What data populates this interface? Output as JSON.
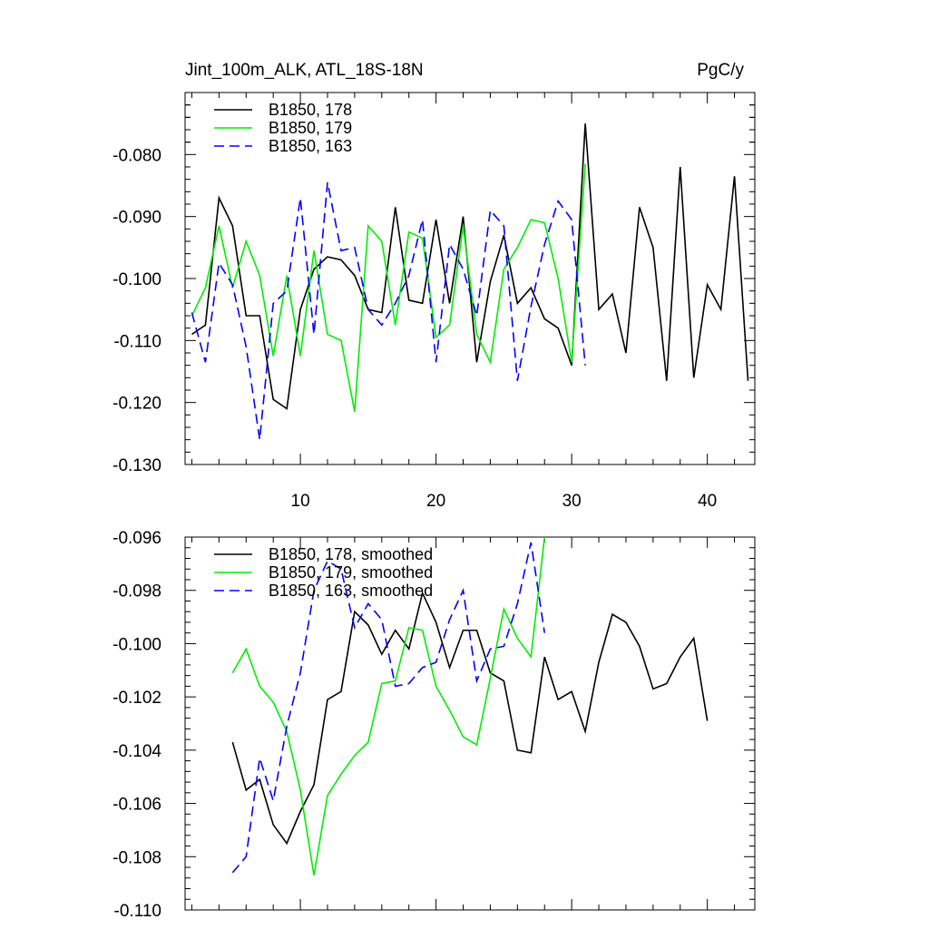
{
  "chart_data": [
    {
      "type": "line",
      "title": "Jint_100m_ALK, ATL_18S-18N",
      "units": "PgC/y",
      "xlabel": "",
      "ylabel": "",
      "xlim": [
        1.5,
        43.5
      ],
      "ylim": [
        -0.13,
        -0.07
      ],
      "x_ticks": [
        10,
        20,
        30,
        40
      ],
      "x_tick_labels": [
        "10",
        "20",
        "30",
        "40"
      ],
      "y_ticks": [
        -0.13,
        -0.12,
        -0.11,
        -0.1,
        -0.09,
        -0.08
      ],
      "y_tick_labels": [
        "-0.130",
        "-0.120",
        "-0.110",
        "-0.100",
        "-0.090",
        "-0.080"
      ],
      "grid": false,
      "legend_position": "top-left",
      "series": [
        {
          "name": "B1850, 178",
          "color": "#000000",
          "dash": "solid",
          "x": [
            2,
            3,
            4,
            5,
            6,
            7,
            8,
            9,
            10,
            11,
            12,
            13,
            14,
            15,
            16,
            17,
            18,
            19,
            20,
            21,
            22,
            23,
            24,
            25,
            26,
            27,
            28,
            29,
            30,
            31,
            32,
            33,
            34,
            35,
            36,
            37,
            38,
            39,
            40,
            41,
            42,
            43
          ],
          "values": [
            -0.109,
            -0.1075,
            -0.087,
            -0.0915,
            -0.106,
            -0.106,
            -0.1195,
            -0.121,
            -0.105,
            -0.0985,
            -0.0965,
            -0.097,
            -0.0995,
            -0.105,
            -0.1055,
            -0.0885,
            -0.1035,
            -0.104,
            -0.0905,
            -0.104,
            -0.09,
            -0.1135,
            -0.1005,
            -0.093,
            -0.104,
            -0.1015,
            -0.1065,
            -0.108,
            -0.114,
            -0.075,
            -0.105,
            -0.1025,
            -0.112,
            -0.0885,
            -0.095,
            -0.1165,
            -0.082,
            -0.116,
            -0.101,
            -0.105,
            -0.0835,
            -0.1165
          ]
        },
        {
          "name": "B1850, 179",
          "color": "#00ee00",
          "dash": "solid",
          "x": [
            2,
            3,
            4,
            5,
            6,
            7,
            8,
            9,
            10,
            11,
            12,
            13,
            14,
            15,
            16,
            17,
            18,
            19,
            20,
            21,
            22,
            23,
            24,
            25,
            26,
            27,
            28,
            29,
            30,
            31
          ],
          "values": [
            -0.106,
            -0.1015,
            -0.0915,
            -0.1015,
            -0.094,
            -0.0995,
            -0.1125,
            -0.0995,
            -0.1125,
            -0.0955,
            -0.109,
            -0.11,
            -0.1215,
            -0.0915,
            -0.094,
            -0.1075,
            -0.0925,
            -0.0935,
            -0.1095,
            -0.1075,
            -0.0915,
            -0.109,
            -0.1135,
            -0.0985,
            -0.095,
            -0.0905,
            -0.091,
            -0.1,
            -0.1135,
            -0.0815
          ]
        },
        {
          "name": "B1850, 163",
          "color": "#0000ff",
          "dash": "dashed",
          "x": [
            2,
            3,
            4,
            5,
            6,
            7,
            8,
            9,
            10,
            11,
            12,
            13,
            14,
            15,
            16,
            17,
            18,
            19,
            20,
            21,
            22,
            23,
            24,
            25,
            26,
            27,
            28,
            29,
            30,
            31
          ],
          "values": [
            -0.1055,
            -0.1135,
            -0.0975,
            -0.101,
            -0.111,
            -0.126,
            -0.104,
            -0.102,
            -0.087,
            -0.109,
            -0.0845,
            -0.0955,
            -0.095,
            -0.105,
            -0.1075,
            -0.104,
            -0.0995,
            -0.0905,
            -0.1135,
            -0.0945,
            -0.0985,
            -0.106,
            -0.089,
            -0.0915,
            -0.1165,
            -0.1045,
            -0.0945,
            -0.0875,
            -0.0905,
            -0.114
          ]
        }
      ]
    },
    {
      "type": "line",
      "title": "",
      "xlabel": "",
      "ylabel": "",
      "xlim": [
        1.5,
        43.5
      ],
      "ylim": [
        -0.11,
        -0.096
      ],
      "x_ticks": [
        10,
        20,
        30,
        40
      ],
      "x_tick_labels": [
        "",
        "",
        "",
        ""
      ],
      "y_ticks": [
        -0.11,
        -0.108,
        -0.106,
        -0.104,
        -0.102,
        -0.1,
        -0.098,
        -0.096
      ],
      "y_tick_labels": [
        "-0.110",
        "-0.108",
        "-0.106",
        "-0.104",
        "-0.102",
        "-0.100",
        "-0.098",
        "-0.096"
      ],
      "grid": false,
      "legend_position": "top-left",
      "series": [
        {
          "name": "B1850, 178, smoothed",
          "color": "#000000",
          "dash": "solid",
          "x": [
            5,
            6,
            7,
            8,
            9,
            10,
            11,
            12,
            13,
            14,
            15,
            16,
            17,
            18,
            19,
            20,
            21,
            22,
            23,
            24,
            25,
            26,
            27,
            28,
            29,
            30,
            31,
            32,
            33,
            34,
            35,
            36,
            37,
            38,
            39,
            40
          ],
          "values": [
            -0.1037,
            -0.1055,
            -0.1051,
            -0.1068,
            -0.1075,
            -0.1063,
            -0.1053,
            -0.1021,
            -0.1018,
            -0.0988,
            -0.0993,
            -0.1004,
            -0.0995,
            -0.1002,
            -0.0981,
            -0.0992,
            -0.1009,
            -0.0995,
            -0.0995,
            -0.1011,
            -0.1014,
            -0.104,
            -0.1041,
            -0.1005,
            -0.1021,
            -0.1018,
            -0.1033,
            -0.1007,
            -0.0989,
            -0.0992,
            -0.1001,
            -0.1017,
            -0.1015,
            -0.1005,
            -0.0998,
            -0.1029
          ]
        },
        {
          "name": "B1850, 179, smoothed",
          "color": "#00ee00",
          "dash": "solid",
          "x": [
            5,
            6,
            7,
            8,
            9,
            10,
            11,
            12,
            13,
            14,
            15,
            16,
            17,
            18,
            19,
            20,
            21,
            22,
            23,
            24,
            25,
            26,
            27,
            28
          ],
          "values": [
            -0.1011,
            -0.1002,
            -0.1016,
            -0.1022,
            -0.1033,
            -0.1055,
            -0.1087,
            -0.1057,
            -0.1049,
            -0.1042,
            -0.1037,
            -0.1015,
            -0.1014,
            -0.0994,
            -0.0995,
            -0.1016,
            -0.1025,
            -0.1035,
            -0.1038,
            -0.1013,
            -0.0987,
            -0.0998,
            -0.1005,
            -0.096
          ]
        },
        {
          "name": "B1850, 163, smoothed",
          "color": "#0000ff",
          "dash": "dashed",
          "x": [
            5,
            6,
            7,
            8,
            9,
            10,
            11,
            12,
            13,
            14,
            15,
            16,
            17,
            18,
            19,
            20,
            21,
            22,
            23,
            24,
            25,
            26,
            27,
            28
          ],
          "values": [
            -0.1086,
            -0.108,
            -0.1043,
            -0.1059,
            -0.1031,
            -0.1011,
            -0.098,
            -0.0969,
            -0.0972,
            -0.0994,
            -0.0985,
            -0.0991,
            -0.1016,
            -0.1015,
            -0.1009,
            -0.1007,
            -0.0991,
            -0.098,
            -0.1014,
            -0.1002,
            -0.1001,
            -0.0985,
            -0.0962,
            -0.0996
          ]
        }
      ]
    }
  ]
}
